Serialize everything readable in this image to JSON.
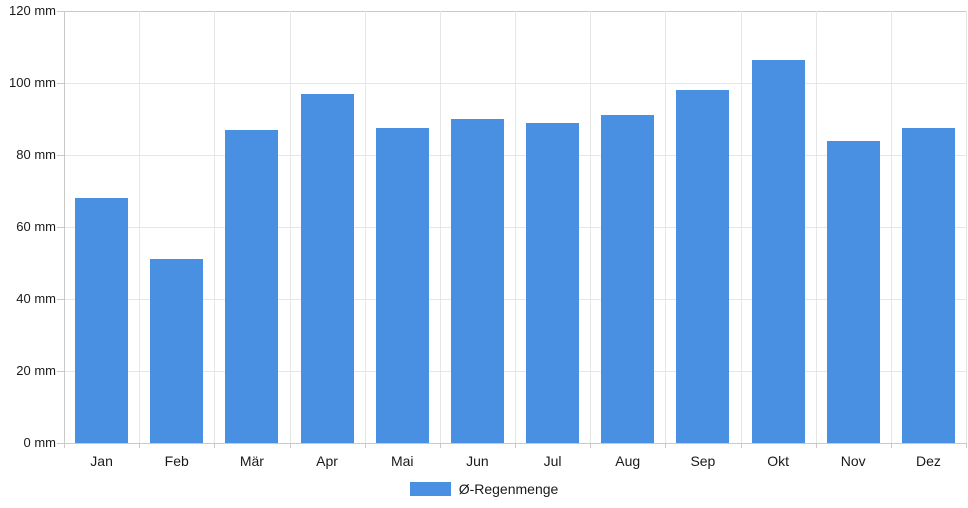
{
  "chart_data": {
    "type": "bar",
    "title": "",
    "xlabel": "",
    "ylabel": "",
    "categories": [
      "Jan",
      "Feb",
      "Mär",
      "Apr",
      "Mai",
      "Jun",
      "Jul",
      "Aug",
      "Sep",
      "Okt",
      "Nov",
      "Dez"
    ],
    "series": [
      {
        "name": "Ø-Regenmenge",
        "values": [
          68,
          51,
          87,
          97,
          87.5,
          90,
          89,
          91,
          98,
          106.5,
          84,
          87.5
        ]
      }
    ],
    "unit": "mm",
    "ylim": [
      0,
      120
    ],
    "ytick_step": 20,
    "ytick_labels": [
      "0 mm",
      "20 mm",
      "40 mm",
      "60 mm",
      "80 mm",
      "100 mm",
      "120 mm"
    ],
    "grid": "on",
    "legend_position": "bottom"
  },
  "legend": {
    "label": "Ø-Regenmenge"
  },
  "colors": {
    "bar": "#4a90e2",
    "grid": "#e6e6e6",
    "axis": "#c9c9c9",
    "text": "#1a1a1a"
  }
}
